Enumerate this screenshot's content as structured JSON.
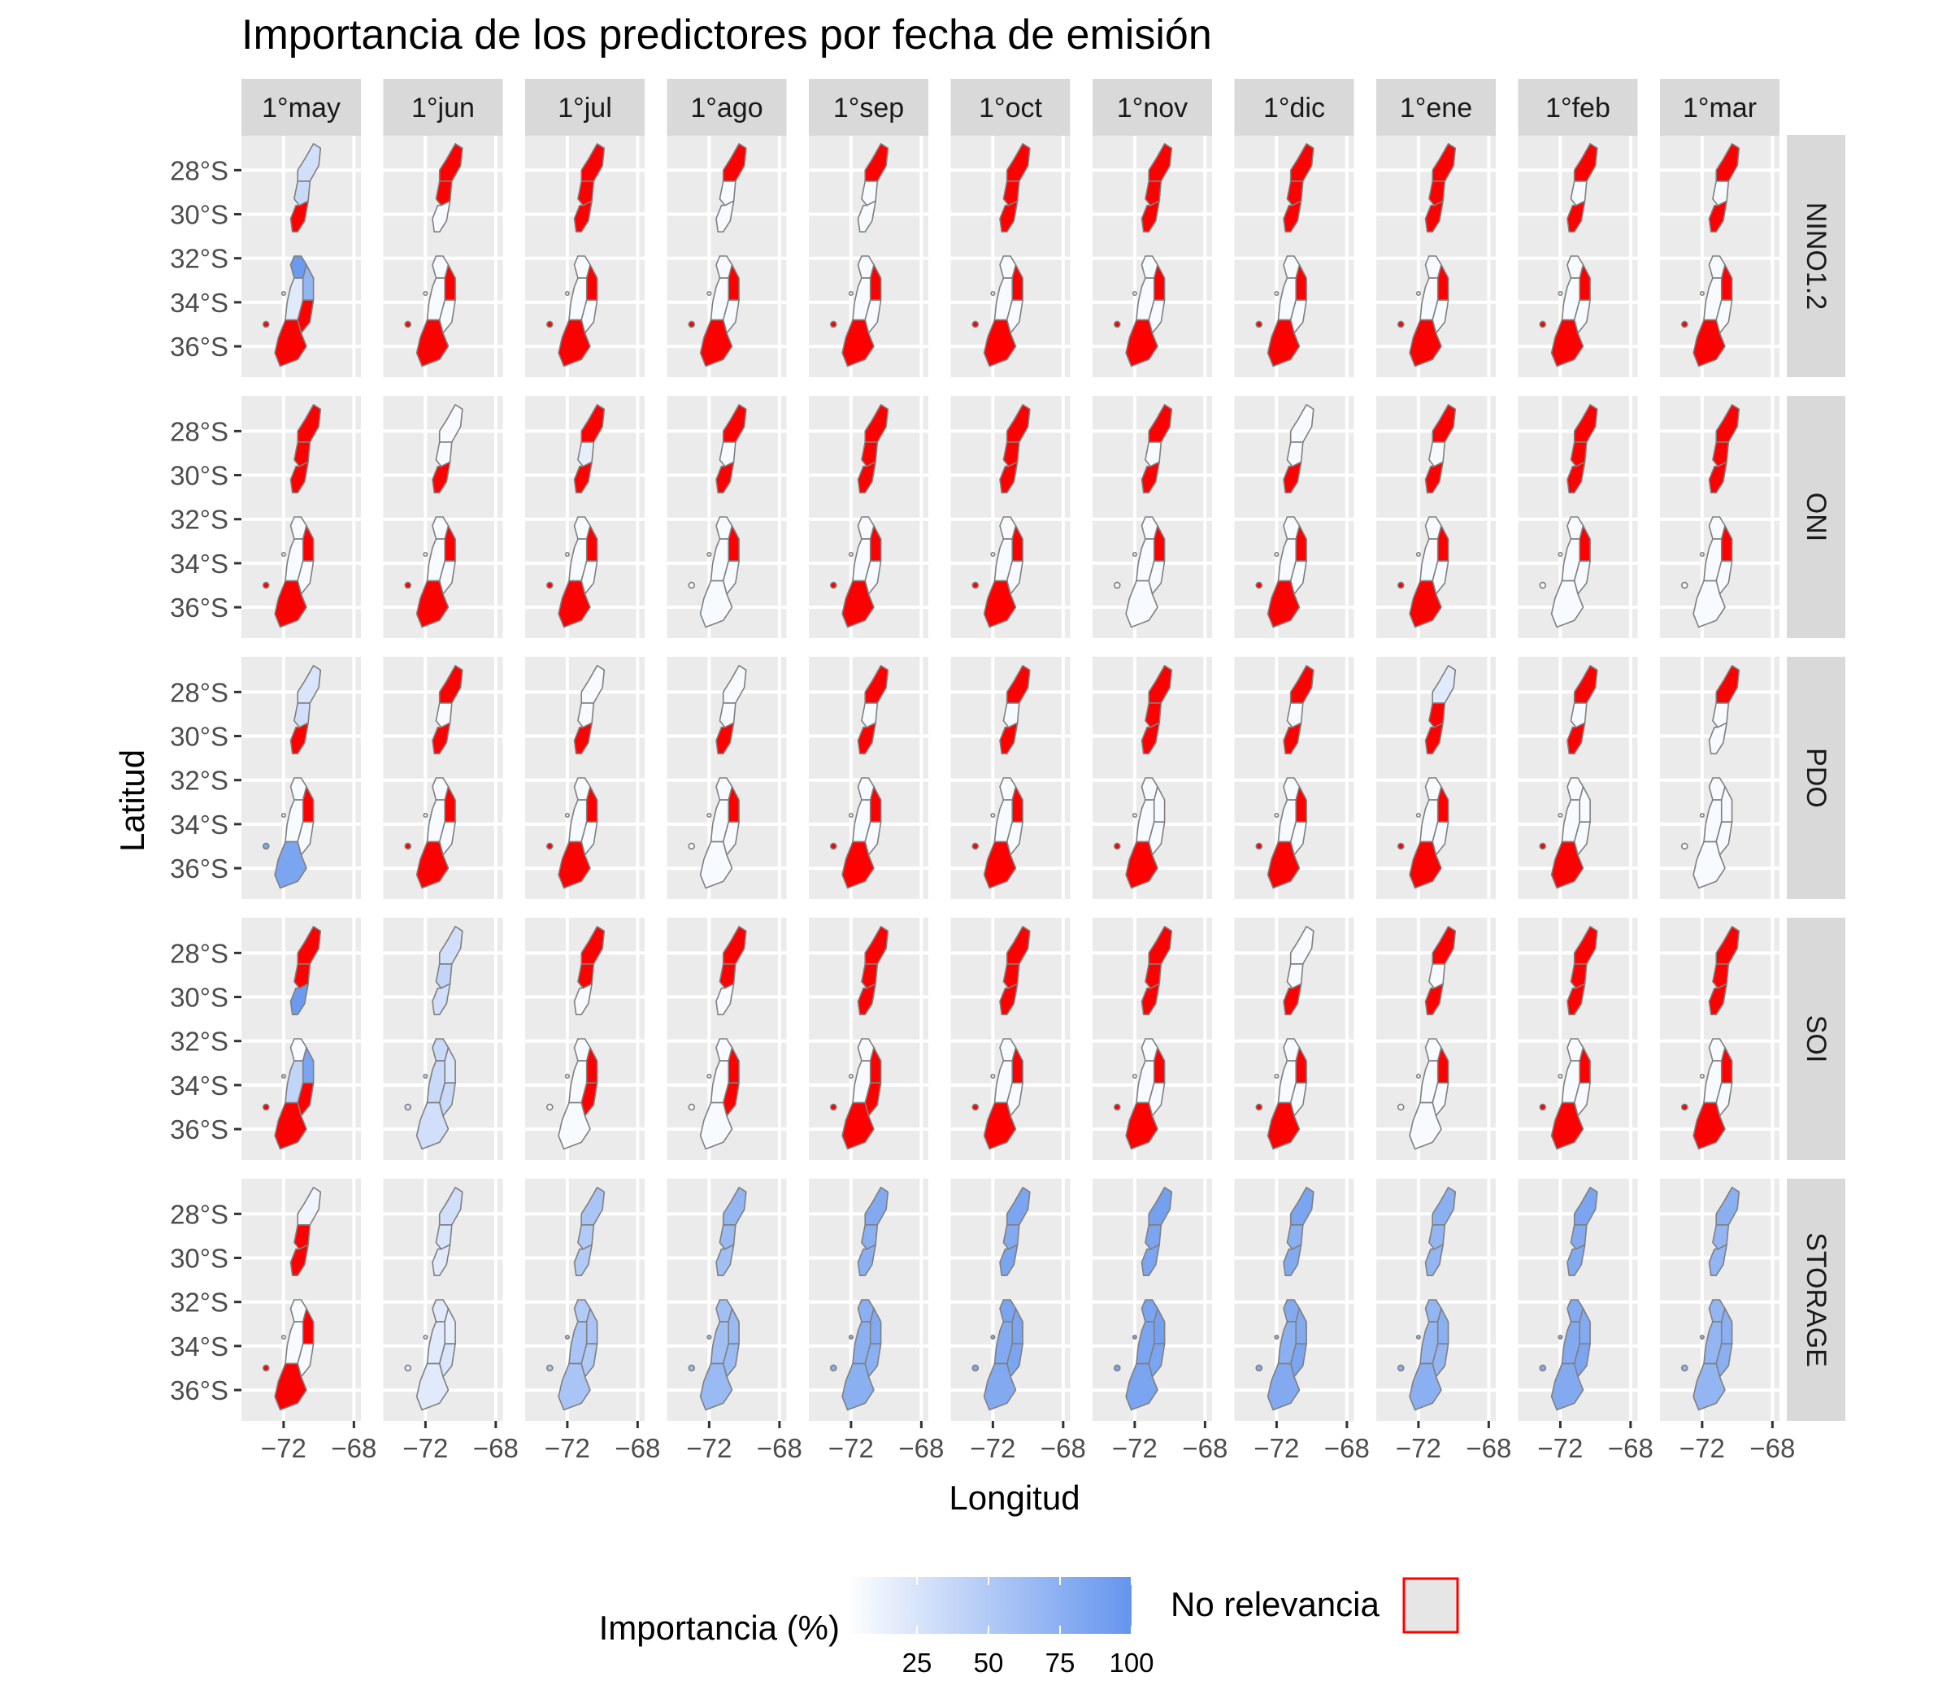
{
  "chart_data": {
    "type": "choropleth-facet-grid",
    "title": "Importancia de los predictores por fecha de emisión",
    "xlabel": "Longitud",
    "ylabel": "Latitud",
    "columns": [
      "1°may",
      "1°jun",
      "1°jul",
      "1°ago",
      "1°sep",
      "1°oct",
      "1°nov",
      "1°dic",
      "1°ene",
      "1°feb",
      "1°mar"
    ],
    "rows": [
      "NINO1.2",
      "ONI",
      "PDO",
      "SOI",
      "STORAGE"
    ],
    "x_ticks": [
      "−72",
      "−68"
    ],
    "x_tick_values": [
      -72,
      -68
    ],
    "xlim": [
      -74.4,
      -67.6
    ],
    "y_ticks": [
      "28°S",
      "30°S",
      "32°S",
      "34°S",
      "36°S"
    ],
    "y_tick_values": [
      -28,
      -30,
      -32,
      -34,
      -36
    ],
    "ylim": [
      -37.4,
      -26.4
    ],
    "region_note": "Each panel shows 8 zones (north to south): Z1 northern, Z2 north-central, Z3 Coquimbo south, Z4 Valparaíso north, Z5 Maipo interior, Z6 central coast, Z7 central interior south, Z8 southern. null = No relevancia (red).",
    "importance_pct": {
      "NINO1.2": [
        [
          30,
          35,
          null,
          95,
          70,
          20,
          null,
          null
        ],
        [
          null,
          null,
          5,
          5,
          null,
          5,
          5,
          null
        ],
        [
          null,
          null,
          null,
          5,
          null,
          5,
          5,
          null
        ],
        [
          null,
          5,
          5,
          5,
          null,
          5,
          5,
          null
        ],
        [
          null,
          5,
          5,
          5,
          null,
          5,
          5,
          null
        ],
        [
          null,
          null,
          null,
          5,
          null,
          5,
          5,
          null
        ],
        [
          null,
          null,
          null,
          5,
          null,
          5,
          5,
          null
        ],
        [
          null,
          null,
          null,
          5,
          null,
          5,
          5,
          null
        ],
        [
          null,
          null,
          null,
          5,
          null,
          5,
          5,
          null
        ],
        [
          null,
          5,
          null,
          5,
          null,
          5,
          5,
          null
        ],
        [
          null,
          5,
          null,
          5,
          null,
          5,
          5,
          null
        ]
      ],
      "ONI": [
        [
          null,
          null,
          null,
          5,
          null,
          5,
          5,
          null
        ],
        [
          5,
          5,
          null,
          5,
          null,
          5,
          5,
          null
        ],
        [
          null,
          15,
          null,
          5,
          null,
          5,
          5,
          null
        ],
        [
          null,
          5,
          null,
          5,
          null,
          5,
          5,
          5
        ],
        [
          null,
          null,
          null,
          5,
          null,
          5,
          5,
          null
        ],
        [
          null,
          null,
          null,
          5,
          null,
          5,
          5,
          null
        ],
        [
          null,
          5,
          null,
          5,
          null,
          5,
          5,
          5
        ],
        [
          5,
          5,
          null,
          5,
          null,
          5,
          5,
          null
        ],
        [
          null,
          5,
          null,
          5,
          null,
          5,
          5,
          null
        ],
        [
          null,
          null,
          null,
          5,
          null,
          5,
          5,
          5
        ],
        [
          null,
          null,
          null,
          5,
          null,
          5,
          5,
          5
        ]
      ],
      "PDO": [
        [
          25,
          30,
          null,
          5,
          null,
          5,
          5,
          85
        ],
        [
          null,
          5,
          null,
          5,
          null,
          5,
          5,
          null
        ],
        [
          5,
          5,
          null,
          5,
          null,
          5,
          5,
          null
        ],
        [
          5,
          5,
          null,
          5,
          null,
          5,
          5,
          5
        ],
        [
          null,
          5,
          null,
          5,
          null,
          5,
          5,
          null
        ],
        [
          null,
          5,
          null,
          5,
          null,
          5,
          5,
          null
        ],
        [
          null,
          null,
          null,
          5,
          5,
          5,
          5,
          null
        ],
        [
          null,
          5,
          null,
          5,
          null,
          5,
          5,
          null
        ],
        [
          20,
          null,
          null,
          5,
          null,
          5,
          5,
          null
        ],
        [
          null,
          5,
          null,
          5,
          5,
          5,
          5,
          null
        ],
        [
          null,
          5,
          5,
          5,
          5,
          5,
          5,
          5
        ]
      ],
      "SOI": [
        [
          null,
          null,
          95,
          5,
          85,
          40,
          null,
          null
        ],
        [
          30,
          40,
          30,
          35,
          25,
          35,
          35,
          30
        ],
        [
          null,
          null,
          5,
          5,
          null,
          5,
          null,
          5
        ],
        [
          null,
          null,
          5,
          5,
          null,
          5,
          null,
          5
        ],
        [
          null,
          null,
          null,
          5,
          null,
          5,
          null,
          null
        ],
        [
          null,
          null,
          null,
          5,
          null,
          5,
          5,
          null
        ],
        [
          null,
          null,
          null,
          5,
          null,
          5,
          5,
          null
        ],
        [
          5,
          5,
          null,
          5,
          null,
          5,
          5,
          null
        ],
        [
          null,
          5,
          null,
          5,
          null,
          5,
          5,
          5
        ],
        [
          null,
          null,
          null,
          5,
          null,
          5,
          5,
          null
        ],
        [
          null,
          null,
          null,
          5,
          null,
          5,
          5,
          null
        ]
      ],
      "STORAGE": [
        [
          10,
          null,
          null,
          5,
          null,
          5,
          5,
          null
        ],
        [
          30,
          25,
          20,
          20,
          15,
          20,
          25,
          20
        ],
        [
          55,
          50,
          50,
          50,
          55,
          55,
          50,
          55
        ],
        [
          70,
          65,
          60,
          60,
          65,
          60,
          65,
          65
        ],
        [
          80,
          75,
          75,
          75,
          80,
          75,
          75,
          75
        ],
        [
          85,
          80,
          85,
          85,
          85,
          80,
          85,
          80
        ],
        [
          90,
          85,
          85,
          85,
          90,
          85,
          85,
          85
        ],
        [
          85,
          75,
          80,
          80,
          80,
          75,
          85,
          80
        ],
        [
          75,
          70,
          70,
          70,
          75,
          70,
          70,
          75
        ],
        [
          85,
          80,
          80,
          80,
          80,
          80,
          85,
          80
        ],
        [
          75,
          70,
          70,
          70,
          75,
          70,
          75,
          70
        ]
      ]
    },
    "legend": {
      "title": "Importancia (%)",
      "breaks": [
        "25",
        "50",
        "75",
        "100"
      ],
      "break_values": [
        25,
        50,
        75,
        100
      ],
      "range": [
        0,
        100
      ],
      "low_color": "#ffffff",
      "high_color": "#6495ed",
      "na_label": "No relevancia",
      "na_fill": "#ff0000",
      "na_swatch_fill": "#e6e6e6",
      "na_swatch_border": "#ff0000",
      "placement": "bottom"
    },
    "grid": true
  }
}
